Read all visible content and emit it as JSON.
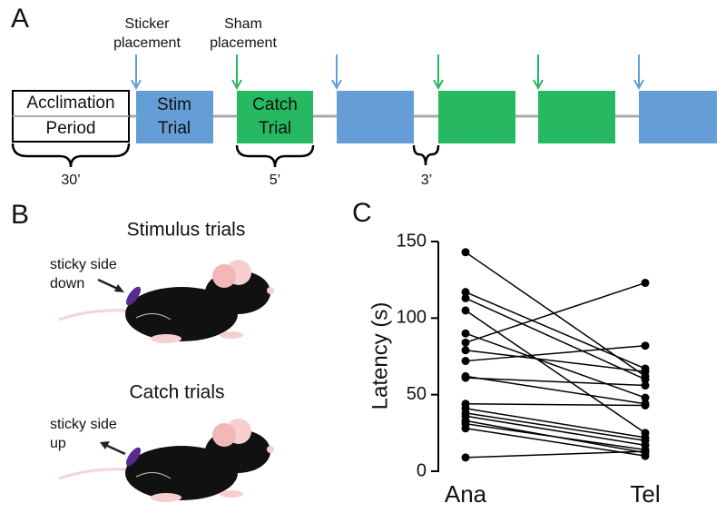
{
  "panels": {
    "a": {
      "letter": "A",
      "sticker_label": [
        "Sticker",
        "placement"
      ],
      "sham_label": [
        "Sham",
        "placement"
      ],
      "acclimation": [
        "Acclimation",
        "Period"
      ],
      "stim": [
        "Stim",
        "Trial"
      ],
      "catch": [
        "Catch",
        "Trial"
      ],
      "durations": [
        "30’",
        "5’",
        "3’"
      ]
    },
    "b": {
      "letter": "B",
      "stimulus_title": "Stimulus trials",
      "stimulus_note": [
        "sticky side",
        "down"
      ],
      "catch_title": "Catch trials",
      "catch_note": [
        "sticky side",
        "up"
      ]
    },
    "c": {
      "letter": "C"
    }
  },
  "chart_data": {
    "type": "paired",
    "ylabel": "Latency (s)",
    "categories": [
      "Ana",
      "Tel"
    ],
    "pairs": [
      [
        143,
        62
      ],
      [
        117,
        67
      ],
      [
        113,
        60
      ],
      [
        105,
        25
      ],
      [
        90,
        48
      ],
      [
        84,
        123
      ],
      [
        79,
        65
      ],
      [
        72,
        82
      ],
      [
        62,
        44
      ],
      [
        61,
        56
      ],
      [
        44,
        43
      ],
      [
        41,
        22
      ],
      [
        38,
        20
      ],
      [
        36,
        17
      ],
      [
        33,
        12
      ],
      [
        31,
        14
      ],
      [
        28,
        10
      ],
      [
        9,
        13
      ]
    ],
    "color": "#000000",
    "ylim": [
      0,
      150
    ],
    "yticks": [
      0,
      50,
      100,
      150
    ]
  }
}
